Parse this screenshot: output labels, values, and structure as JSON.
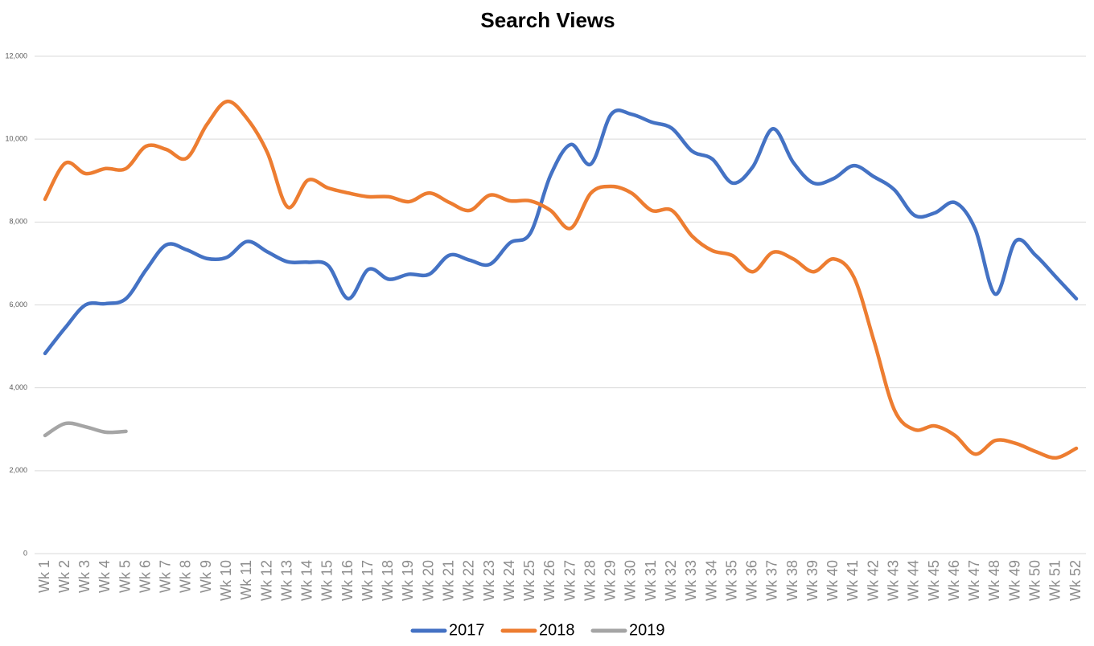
{
  "chart_data": {
    "type": "line",
    "title": "Search Views",
    "categories": [
      "Wk 1",
      "Wk 2",
      "Wk 3",
      "Wk 4",
      "Wk 5",
      "Wk 6",
      "Wk 7",
      "Wk 8",
      "Wk 9",
      "Wk 10",
      "Wk 11",
      "Wk 12",
      "Wk 13",
      "Wk 14",
      "Wk 15",
      "Wk 16",
      "Wk 17",
      "Wk 18",
      "Wk 19",
      "Wk 20",
      "Wk 21",
      "Wk 22",
      "Wk 23",
      "Wk 24",
      "Wk 25",
      "Wk 26",
      "Wk 27",
      "Wk 28",
      "Wk 29",
      "Wk 30",
      "Wk 31",
      "Wk 32",
      "Wk 33",
      "Wk 34",
      "Wk 35",
      "Wk 36",
      "Wk 37",
      "Wk 38",
      "Wk 39",
      "Wk 40",
      "Wk 41",
      "Wk 42",
      "Wk 43",
      "Wk 44",
      "Wk 45",
      "Wk 46",
      "Wk 47",
      "Wk 48",
      "Wk 49",
      "Wk 50",
      "Wk 51",
      "Wk 52"
    ],
    "series": [
      {
        "name": "2017",
        "color": "#4472c4",
        "values": [
          4830,
          5450,
          6000,
          6030,
          6150,
          6850,
          7450,
          7330,
          7120,
          7150,
          7530,
          7280,
          7040,
          7030,
          6950,
          6150,
          6860,
          6620,
          6740,
          6740,
          7200,
          7080,
          6980,
          7500,
          7730,
          9130,
          9870,
          9400,
          10600,
          10600,
          10410,
          10260,
          9710,
          9520,
          8940,
          9330,
          10250,
          9440,
          8940,
          9050,
          9360,
          9090,
          8780,
          8160,
          8220,
          8470,
          7830,
          6260,
          7540,
          7190,
          6670,
          6150
        ]
      },
      {
        "name": "2018",
        "color": "#ed7d31",
        "values": [
          8550,
          9420,
          9170,
          9290,
          9290,
          9830,
          9750,
          9540,
          10350,
          10910,
          10490,
          9670,
          8360,
          9010,
          8820,
          8700,
          8610,
          8610,
          8490,
          8700,
          8470,
          8280,
          8650,
          8510,
          8510,
          8280,
          7850,
          8700,
          8860,
          8700,
          8280,
          8280,
          7660,
          7310,
          7190,
          6800,
          7270,
          7110,
          6800,
          7110,
          6670,
          5120,
          3470,
          2990,
          3080,
          2850,
          2400,
          2730,
          2660,
          2460,
          2310,
          2540
        ]
      },
      {
        "name": "2019",
        "color": "#a5a5a5",
        "values": [
          2850,
          3140,
          3060,
          2930,
          2950,
          null,
          null,
          null,
          null,
          null,
          null,
          null,
          null,
          null,
          null,
          null,
          null,
          null,
          null,
          null,
          null,
          null,
          null,
          null,
          null,
          null,
          null,
          null,
          null,
          null,
          null,
          null,
          null,
          null,
          null,
          null,
          null,
          null,
          null,
          null,
          null,
          null,
          null,
          null,
          null,
          null,
          null,
          null,
          null,
          null,
          null,
          null
        ]
      }
    ],
    "ylim": [
      0,
      12000
    ],
    "yticks": [
      0,
      {
        "value": 2000,
        "label": "2,000"
      },
      {
        "value": 4000,
        "label": "4,000"
      },
      {
        "value": 6000,
        "label": "6,000"
      },
      {
        "value": 8000,
        "label": "8,000"
      },
      {
        "value": 10000,
        "label": "10,000"
      },
      {
        "value": 12000,
        "label": "12,000"
      }
    ],
    "grid": true,
    "legend": "bottom"
  }
}
